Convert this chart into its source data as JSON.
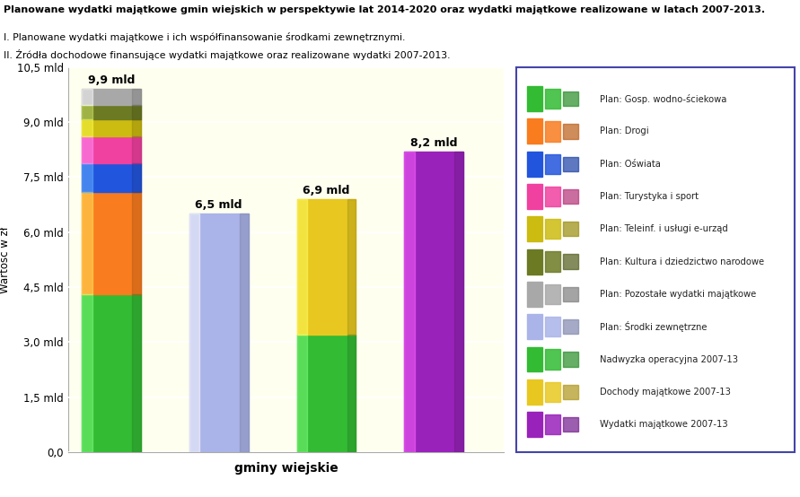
{
  "title_line1": "Planowane wydatki majątkowe gmin wiejskich w perspektywie lat 2014-2020 oraz wydatki majątkowe realizowane w latach 2007-2013.",
  "subtitle1": "I. Planowane wydatki majątkowe i ich współfinansowanie środkami zewnętrznymi.",
  "subtitle2": "II. Źródła dochodowe finansujące wydatki majątkowe oraz realizowane wydatki 2007-2013.",
  "xlabel": "gminy wiejskie",
  "ylabel": "Wartość w zł",
  "ylim_max": 10500000000,
  "yticks": [
    0,
    1500000000,
    3000000000,
    4500000000,
    6000000000,
    7500000000,
    9000000000,
    10500000000
  ],
  "ytick_labels": [
    "0,0",
    "1,5 mld",
    "3,0 mld",
    "4,5 mld",
    "6,0 mld",
    "7,5 mld",
    "9,0 mld",
    "10,5 mld"
  ],
  "bar_width": 0.55,
  "bar1_total_label": "9,9 mld",
  "bar2_total_label": "6,5 mld",
  "bar3_total_label": "6,9 mld",
  "bar4_total_label": "8,2 mld",
  "bar1_segments": [
    4300000000,
    2800000000,
    780000000,
    720000000,
    480000000,
    380000000,
    440000000
  ],
  "bar2_value": 6500000000,
  "bar3_segments": [
    3200000000,
    3700000000
  ],
  "bar4_value": 8200000000,
  "bar1_colors": [
    "#33bb33",
    "#f97c1e",
    "#2255dd",
    "#f040a0",
    "#ccbb10",
    "#6b7a23",
    "#a8a8a8"
  ],
  "bar2_color": "#aab4e8",
  "bar3_colors": [
    "#33bb33",
    "#e8c820"
  ],
  "bar4_color": "#9922bb",
  "legend_labels": [
    "Plan: Gosp. wodno-ściekowa",
    "Plan: Drogi",
    "Plan: Oświata",
    "Plan: Turystyka i sport",
    "Plan: Teleinf. i usługi e-urząd",
    "Plan: Kultura i dziedzictwo narodowe",
    "Plan: Pozostałe wydatki majątkowe",
    "Plan: Środki zewnętrzne",
    "Nadwyzka operacyjna 2007-13",
    "Dochody majątkowe 2007-13",
    "Wydatki majątkowe 2007-13"
  ],
  "legend_colors": [
    "#33bb33",
    "#f97c1e",
    "#2255dd",
    "#f040a0",
    "#ccbb10",
    "#6b7a23",
    "#a8a8a8",
    "#aab4e8",
    "#33bb33",
    "#e8c820",
    "#9922bb"
  ],
  "chart_bg": "#fffff0",
  "legend_bg": "#faf4f4",
  "legend_border_color": "#4444aa",
  "outer_bg": "#ffffff"
}
